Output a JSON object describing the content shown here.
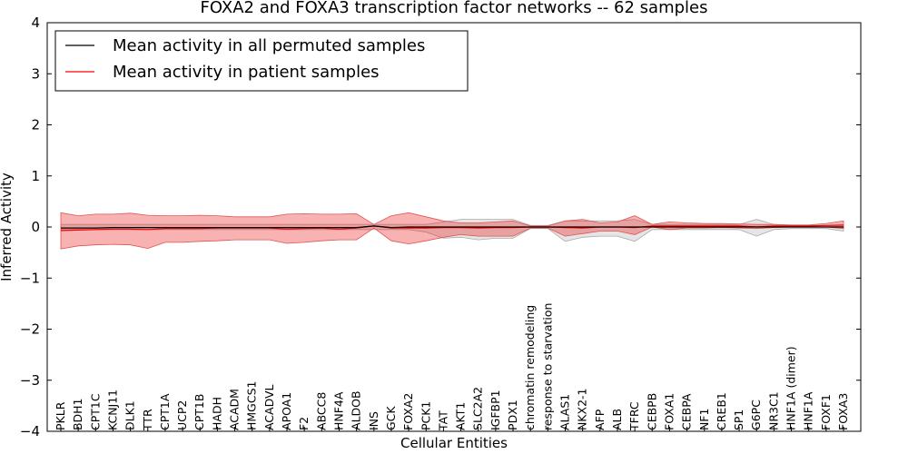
{
  "chart_data": {
    "type": "line",
    "title": "FOXA2 and FOXA3 transcription factor networks -- 62 samples",
    "xlabel": "Cellular Entities",
    "ylabel": "Inferred Activity",
    "ylim": [
      -4,
      4
    ],
    "yticks": [
      "4",
      "3",
      "2",
      "1",
      "0",
      "−1",
      "−2",
      "−3",
      "−4"
    ],
    "yticks_values": [
      4,
      3,
      2,
      1,
      0,
      -1,
      -2,
      -3,
      -4
    ],
    "legend_position": "top-left",
    "categories": [
      "PKLR",
      "BDH1",
      "CPT1C",
      "KCNJ11",
      "DLK1",
      "TTR",
      "CPT1A",
      "UCP2",
      "CPT1B",
      "HADH",
      "ACADM",
      "HMGCS1",
      "ACADVL",
      "APOA1",
      "F2",
      "ABCC8",
      "HNF4A",
      "ALDOB",
      "INS",
      "GCK",
      "FOXA2",
      "PCK1",
      "TAT",
      "AKT1",
      "SLC2A2",
      "IGFBP1",
      "PDX1",
      "chromatin remodeling",
      "response to starvation",
      "ALAS1",
      "NKX2-1",
      "AFP",
      "ALB",
      "TFRC",
      "CEBPB",
      "FOXA1",
      "CEBPA",
      "NF1",
      "CREB1",
      "SP1",
      "G6PC",
      "NR3C1",
      "HNF1A (dimer)",
      "HNF1A",
      "FOXF1",
      "FOXA3"
    ],
    "series": [
      {
        "name": "Mean activity in all permuted samples",
        "color": "#000000",
        "values": [
          -0.02,
          -0.02,
          -0.02,
          -0.01,
          -0.01,
          -0.01,
          -0.01,
          -0.01,
          -0.01,
          -0.01,
          -0.01,
          -0.01,
          -0.01,
          -0.01,
          -0.01,
          -0.01,
          -0.01,
          -0.01,
          0.02,
          -0.01,
          0.0,
          0.0,
          0.0,
          0.0,
          0.0,
          0.0,
          0.0,
          0.0,
          0.0,
          0.0,
          0.0,
          0.0,
          0.0,
          0.0,
          0.0,
          0.0,
          0.0,
          0.0,
          0.0,
          0.0,
          0.0,
          0.0,
          0.0,
          0.0,
          0.0,
          0.0
        ],
        "upper": [
          0.05,
          0.05,
          0.05,
          0.05,
          0.05,
          0.05,
          0.05,
          0.05,
          0.05,
          0.05,
          0.05,
          0.05,
          0.05,
          0.05,
          0.05,
          0.05,
          0.05,
          0.05,
          0.05,
          0.05,
          0.05,
          0.05,
          0.1,
          0.15,
          0.15,
          0.15,
          0.15,
          0.03,
          0.03,
          0.12,
          0.12,
          0.12,
          0.12,
          0.15,
          0.05,
          0.05,
          0.05,
          0.05,
          0.05,
          0.05,
          0.15,
          0.05,
          0.03,
          0.03,
          0.03,
          0.03
        ],
        "lower": [
          -0.05,
          -0.05,
          -0.05,
          -0.05,
          -0.05,
          -0.05,
          -0.05,
          -0.05,
          -0.05,
          -0.05,
          -0.05,
          -0.05,
          -0.05,
          -0.05,
          -0.05,
          -0.05,
          -0.05,
          -0.05,
          -0.05,
          -0.05,
          -0.05,
          -0.1,
          -0.22,
          -0.2,
          -0.25,
          -0.22,
          -0.22,
          -0.03,
          -0.03,
          -0.28,
          -0.2,
          -0.18,
          -0.18,
          -0.28,
          -0.05,
          -0.05,
          -0.05,
          -0.05,
          -0.05,
          -0.05,
          -0.18,
          -0.05,
          -0.03,
          -0.03,
          -0.03,
          -0.08
        ]
      },
      {
        "name": "Mean activity in patient samples",
        "color": "#ff0000",
        "values": [
          -0.07,
          -0.06,
          -0.05,
          -0.04,
          -0.04,
          -0.05,
          -0.03,
          -0.03,
          -0.03,
          -0.02,
          -0.02,
          -0.02,
          -0.02,
          -0.04,
          -0.03,
          -0.02,
          -0.04,
          -0.02,
          0.02,
          -0.02,
          -0.02,
          -0.02,
          -0.01,
          -0.01,
          -0.02,
          -0.01,
          -0.01,
          0.0,
          0.0,
          -0.01,
          -0.02,
          0.0,
          0.0,
          -0.01,
          0.02,
          0.02,
          0.02,
          0.02,
          0.02,
          0.02,
          0.0,
          0.02,
          0.02,
          0.02,
          0.03,
          0.04
        ],
        "upper": [
          0.28,
          0.22,
          0.25,
          0.25,
          0.27,
          0.23,
          0.22,
          0.22,
          0.23,
          0.22,
          0.2,
          0.2,
          0.2,
          0.25,
          0.26,
          0.25,
          0.25,
          0.26,
          0.05,
          0.22,
          0.28,
          0.2,
          0.12,
          0.08,
          0.08,
          0.1,
          0.12,
          0.02,
          0.02,
          0.12,
          0.15,
          0.08,
          0.1,
          0.22,
          0.05,
          0.1,
          0.08,
          0.07,
          0.07,
          0.06,
          0.05,
          0.05,
          0.04,
          0.04,
          0.07,
          0.12
        ],
        "lower": [
          -0.43,
          -0.37,
          -0.35,
          -0.34,
          -0.35,
          -0.42,
          -0.3,
          -0.3,
          -0.28,
          -0.27,
          -0.25,
          -0.25,
          -0.25,
          -0.32,
          -0.3,
          -0.27,
          -0.25,
          -0.25,
          -0.02,
          -0.27,
          -0.33,
          -0.27,
          -0.2,
          -0.15,
          -0.18,
          -0.18,
          -0.18,
          -0.02,
          -0.02,
          -0.18,
          -0.13,
          -0.08,
          -0.08,
          -0.15,
          0.0,
          -0.05,
          -0.02,
          -0.02,
          -0.01,
          -0.02,
          -0.03,
          -0.01,
          0.0,
          0.0,
          0.0,
          -0.03
        ]
      }
    ]
  }
}
